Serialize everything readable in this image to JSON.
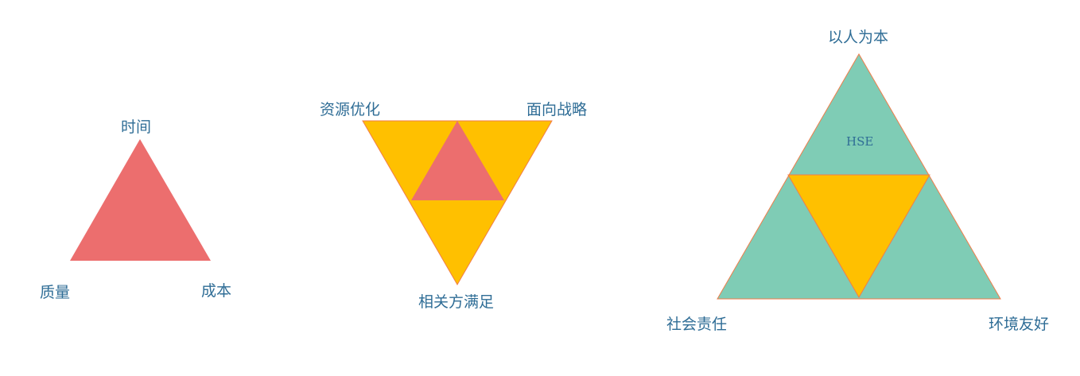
{
  "colors": {
    "red": "#ec6e6e",
    "orange": "#ffc000",
    "teal": "#7fccb5",
    "outline": "#f07d4a",
    "label_text": "#2f6d96"
  },
  "diagram1": {
    "top": "时间",
    "bottom_left": "质量",
    "bottom_right": "成本"
  },
  "diagram2": {
    "top_left": "资源优化",
    "top_right": "面向战略",
    "bottom": "相关方满足"
  },
  "diagram3": {
    "top": "以人为本",
    "center": "HSE",
    "bottom_left": "社会责任",
    "bottom_right": "环境友好"
  }
}
